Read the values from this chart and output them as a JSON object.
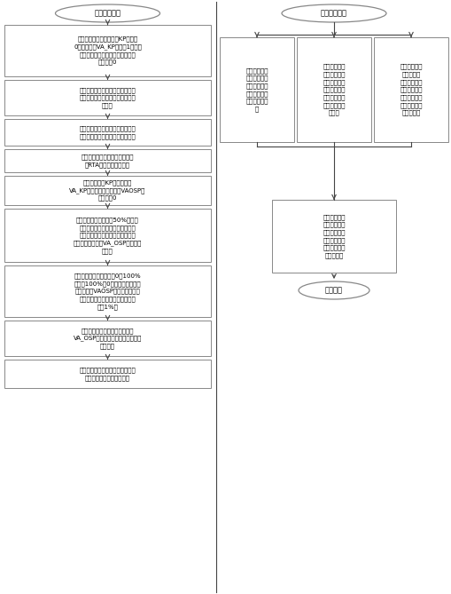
{
  "fig_width": 5.09,
  "fig_height": 6.69,
  "dpi": 100,
  "bg_color": "#ffffff",
  "edge_color": "#888888",
  "arrow_color": "#444444",
  "font_size": 5.0,
  "title_font_size": 6.0,
  "left_oval_text": "补偿参数设定",
  "right_oval_text": "控制参数整定",
  "left_boxes": [
    "将导叶控制回路主环增益KP设置为\n0，副环增益VA_KP设置为1，电液\n转换器电气零位及主配中位补偿参\n数均设为0",
    "开启录波模式，观察反馈及内部参\n数变化，使能输出后，导叶将开至\n最大。",
    "待导叶稳定后，此时观察到的最终\n输出值即是电液转换器的电气零点",
    "将该值作为电液转换器补偿参数\n（RTA）写入卡件程序中",
    "恢复主环增益KP和副环增益\nVA_KP，主配中位补偿参数VAOSP继\n续保持为0",
    "手动设定导叶开度值为50%，待导\n叶打开稳定后，读取主配反馈值，\n该值即为主配中位理想值，将该值\n作为主配中位补偿VA_OSP写入卡件\n程序中",
    "改变导叶开度设定值（从0到100%\n，再从100%到0），在此过程中根\n据需要微调VAOSP的值，使导叶开\n度设定值与反馈值相等（偏差至少\n小于1%）",
    "将最终得到的主配中位补偿参数\nVA_OSP和电液转换器电气零点补偿\n参数保存",
    "将备用通道切为主用，用同样的方\n法进行此通道补偿参数设定"
  ],
  "right_top_boxes": [
    "若已经液压控\n制回路传递函\n数则可使用参\n数整定软件求\n取理论控制参\n数",
    "若传递函数未\n知，但大概了\n解其特性，可\n采用工程整定\n法，如临界比\n例带法、衰减\n曲线法",
    "若已知相似机\n组的控制参\n数，可凭经验\n设置近似值，\n然后加入阶跃\n扰动，根据特\n性逐步求取"
  ],
  "right_bottom_box": "请有资质的试\n验院所进行调\n速器动静态试\n验，精确校验\n参数，使其满\n足规范要求",
  "end_oval_text": "调试结束"
}
